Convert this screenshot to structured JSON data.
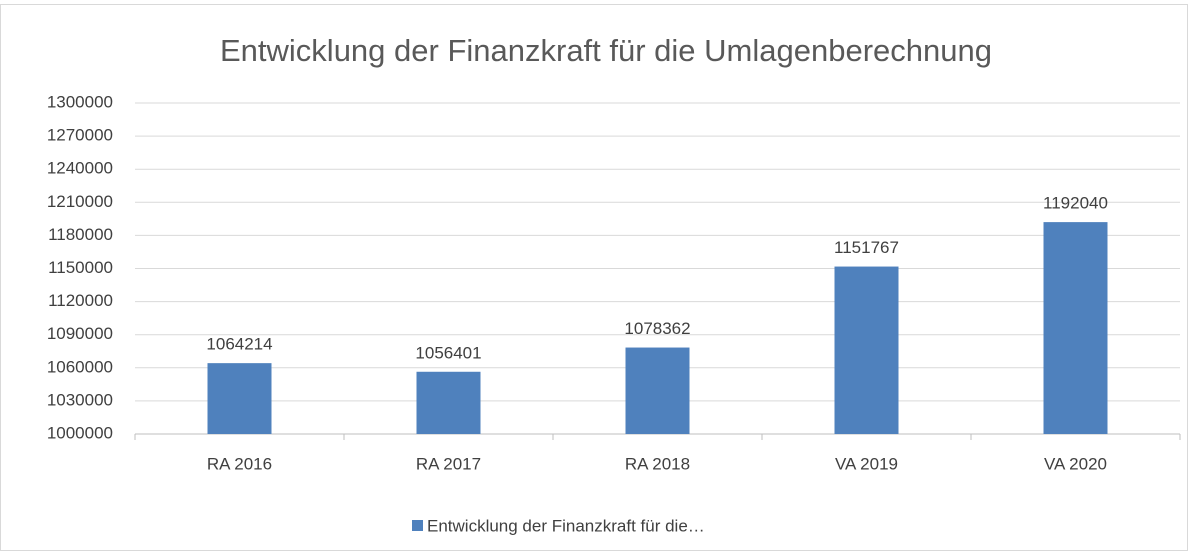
{
  "chart_data": {
    "type": "bar",
    "title": "Entwicklung der Finanzkraft für die Umlagenberechnung",
    "categories": [
      "RA 2016",
      "RA 2017",
      "RA 2018",
      "VA 2019",
      "VA 2020"
    ],
    "series": [
      {
        "name": "Entwicklung der Finanzkraft für die…",
        "color": "#4f81bd",
        "values": [
          1064214,
          1056401,
          1078362,
          1151767,
          1192040
        ]
      }
    ],
    "ylim": [
      1000000,
      1300000
    ],
    "yticks": [
      1000000,
      1030000,
      1060000,
      1090000,
      1120000,
      1150000,
      1180000,
      1210000,
      1240000,
      1270000,
      1300000
    ],
    "grid": true,
    "legend": "bottom"
  }
}
